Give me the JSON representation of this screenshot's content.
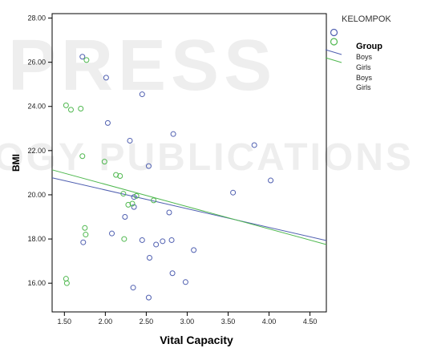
{
  "chart_data": {
    "type": "scatter",
    "title": "",
    "xlabel": "Vital Capacity",
    "ylabel": "BMI",
    "xlim": [
      1.35,
      4.7
    ],
    "ylim": [
      14.7,
      28.2
    ],
    "x_ticks": [
      "1.50",
      "2.00",
      "2.50",
      "3.00",
      "3.50",
      "4.00",
      "4.50"
    ],
    "y_ticks": [
      "16.00",
      "18.00",
      "20.00",
      "22.00",
      "24.00",
      "26.00",
      "28.00"
    ],
    "grid": false,
    "legend": {
      "title": "KELOMPOK",
      "group_header": "Group",
      "entries": [
        "Boys",
        "Girls",
        "Boys",
        "Girls"
      ],
      "placement": "right"
    },
    "watermark": "SCITEPRESS SCIENCE AND TECHNOLOGY PUBLICATIONS",
    "colors": {
      "boys": "#4f5fb0",
      "girls": "#4fb84f",
      "axis": "#000000"
    },
    "series": [
      {
        "name": "Boys",
        "points": [
          [
            1.72,
            26.25
          ],
          [
            2.01,
            25.3
          ],
          [
            2.45,
            24.55
          ],
          [
            2.03,
            23.25
          ],
          [
            2.3,
            22.45
          ],
          [
            2.83,
            22.75
          ],
          [
            3.82,
            22.25
          ],
          [
            2.53,
            21.3
          ],
          [
            4.02,
            20.65
          ],
          [
            3.56,
            20.1
          ],
          [
            2.35,
            19.9
          ],
          [
            2.78,
            19.2
          ],
          [
            2.24,
            19.0
          ],
          [
            2.35,
            19.45
          ],
          [
            2.08,
            18.25
          ],
          [
            2.45,
            17.95
          ],
          [
            2.62,
            17.75
          ],
          [
            2.7,
            17.9
          ],
          [
            2.81,
            17.95
          ],
          [
            3.08,
            17.5
          ],
          [
            2.54,
            17.15
          ],
          [
            1.73,
            17.85
          ],
          [
            2.82,
            16.45
          ],
          [
            2.98,
            16.05
          ],
          [
            2.34,
            15.8
          ],
          [
            2.53,
            15.35
          ]
        ]
      },
      {
        "name": "Girls",
        "points": [
          [
            1.77,
            26.1
          ],
          [
            1.52,
            24.05
          ],
          [
            1.58,
            23.85
          ],
          [
            1.7,
            23.9
          ],
          [
            1.72,
            21.75
          ],
          [
            1.99,
            21.5
          ],
          [
            2.13,
            20.9
          ],
          [
            2.18,
            20.85
          ],
          [
            2.22,
            20.05
          ],
          [
            2.28,
            19.55
          ],
          [
            2.33,
            19.6
          ],
          [
            2.38,
            19.95
          ],
          [
            2.59,
            19.75
          ],
          [
            1.75,
            18.5
          ],
          [
            1.76,
            18.2
          ],
          [
            2.23,
            18.0
          ],
          [
            1.52,
            16.2
          ],
          [
            1.53,
            16.0
          ]
        ]
      }
    ],
    "fit_lines": [
      {
        "name": "Boys",
        "y_at_xmin": 20.77,
        "y_at_xmax": 17.93
      },
      {
        "name": "Girls",
        "y_at_xmin": 21.13,
        "y_at_xmax": 17.75
      }
    ]
  }
}
